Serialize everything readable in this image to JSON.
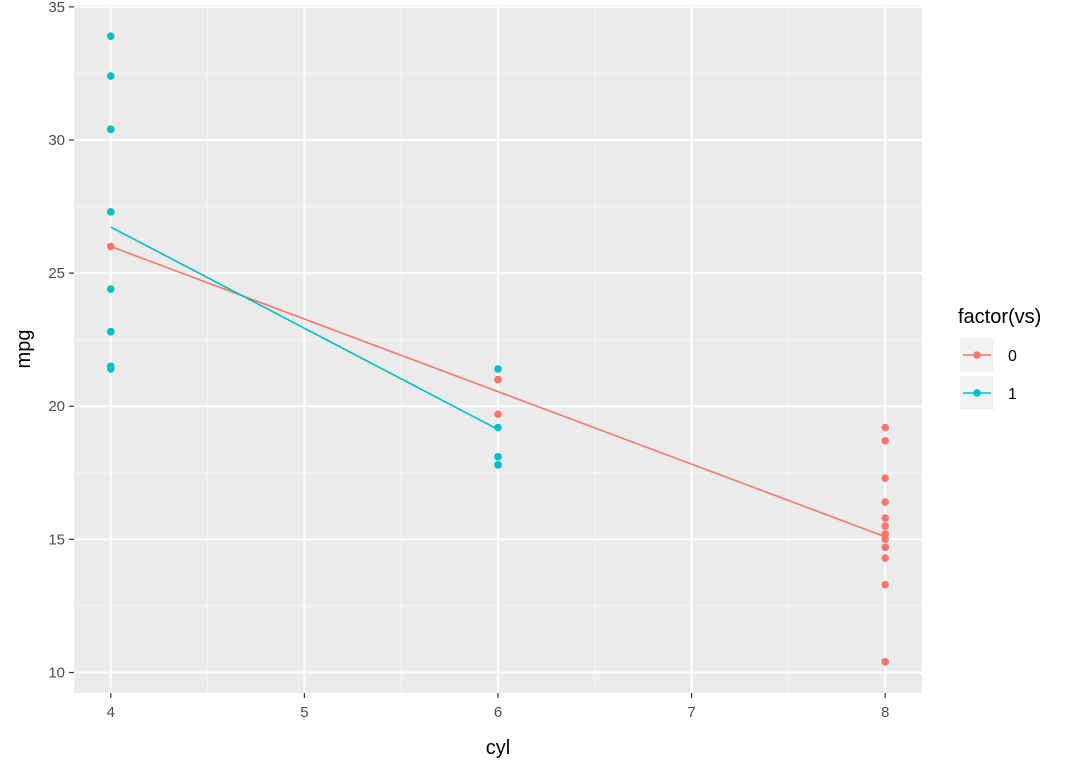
{
  "chart_data": {
    "type": "scatter",
    "xlabel": "cyl",
    "ylabel": "mpg",
    "xlim": [
      3.81,
      8.19
    ],
    "ylim": [
      9.23,
      35.07
    ],
    "x_ticks": [
      4,
      5,
      6,
      7,
      8
    ],
    "x_tick_labels": [
      "4",
      "5",
      "6",
      "7",
      "8"
    ],
    "y_ticks": [
      10,
      15,
      20,
      25,
      30,
      35
    ],
    "y_tick_labels": [
      "10",
      "15",
      "20",
      "25",
      "30",
      "35"
    ],
    "grid": true,
    "panel_background": "#ebebeb",
    "legend": {
      "title": "factor(vs)",
      "placement": "right"
    },
    "series": [
      {
        "name": "0",
        "color": "#f8766d",
        "points": [
          [
            4,
            26.0
          ],
          [
            6,
            21.0
          ],
          [
            6,
            21.0
          ],
          [
            6,
            19.7
          ],
          [
            8,
            18.7
          ],
          [
            8,
            14.3
          ],
          [
            8,
            16.4
          ],
          [
            8,
            17.3
          ],
          [
            8,
            15.2
          ],
          [
            8,
            10.4
          ],
          [
            8,
            10.4
          ],
          [
            8,
            14.7
          ],
          [
            8,
            15.5
          ],
          [
            8,
            15.2
          ],
          [
            8,
            13.3
          ],
          [
            8,
            19.2
          ],
          [
            8,
            15.8
          ],
          [
            8,
            15.0
          ]
        ],
        "fit_line": {
          "x": [
            4,
            8
          ],
          "y": [
            26.0,
            15.1
          ]
        }
      },
      {
        "name": "1",
        "color": "#00bfc4",
        "points": [
          [
            4,
            22.8
          ],
          [
            4,
            24.4
          ],
          [
            4,
            22.8
          ],
          [
            4,
            32.4
          ],
          [
            4,
            30.4
          ],
          [
            4,
            33.9
          ],
          [
            4,
            21.5
          ],
          [
            4,
            27.3
          ],
          [
            4,
            30.4
          ],
          [
            4,
            21.4
          ],
          [
            6,
            21.4
          ],
          [
            6,
            18.1
          ],
          [
            6,
            19.2
          ],
          [
            6,
            17.8
          ]
        ],
        "fit_line": {
          "x": [
            4,
            6
          ],
          "y": [
            26.73,
            19.13
          ]
        }
      }
    ]
  }
}
